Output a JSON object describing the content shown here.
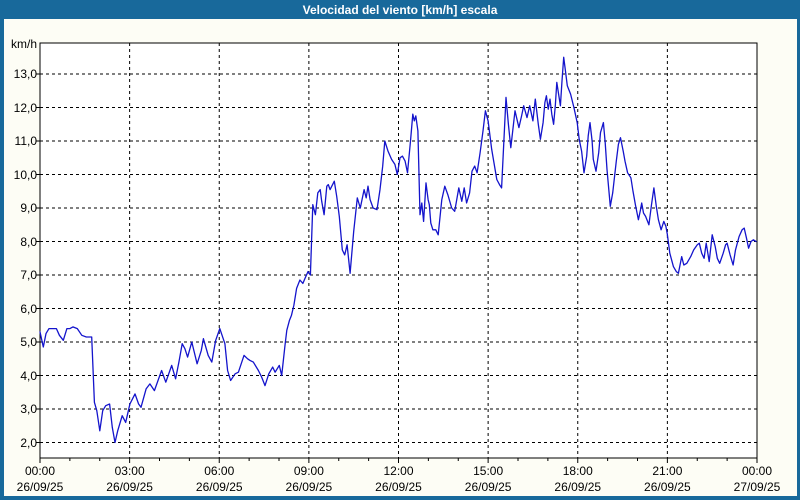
{
  "window": {
    "title": "Velocidad del viento [km/h] escala"
  },
  "colors": {
    "frame": "#18699b",
    "title_text": "#ffffff",
    "line": "#1414cc",
    "grid": "#000000",
    "outer_background": "#fdfdf5",
    "plot_background": "#ffffff"
  },
  "chart_data": {
    "type": "line",
    "title": "Velocidad del viento [km/h] escala",
    "ylabel": "km/h",
    "grid": "dashed",
    "legend": "none",
    "xlim_hours": [
      0,
      24
    ],
    "ylim": [
      1.55,
      13.93
    ],
    "y_ticks": [
      {
        "value": 13,
        "label": "13,0"
      },
      {
        "value": 12,
        "label": "12,0"
      },
      {
        "value": 11,
        "label": "11,0"
      },
      {
        "value": 10,
        "label": "10,0"
      },
      {
        "value": 9,
        "label": "9,0"
      },
      {
        "value": 8,
        "label": "8,0"
      },
      {
        "value": 7,
        "label": "7,0"
      },
      {
        "value": 6,
        "label": "6,0"
      },
      {
        "value": 5,
        "label": "5,0"
      },
      {
        "value": 4,
        "label": "4,0"
      },
      {
        "value": 3,
        "label": "3,0"
      },
      {
        "value": 2,
        "label": "2,0"
      }
    ],
    "x_ticks": [
      {
        "hour": 0,
        "time": "00:00",
        "date": "26/09/25"
      },
      {
        "hour": 3,
        "time": "03:00",
        "date": "26/09/25"
      },
      {
        "hour": 6,
        "time": "06:00",
        "date": "26/09/25"
      },
      {
        "hour": 9,
        "time": "09:00",
        "date": "26/09/25"
      },
      {
        "hour": 12,
        "time": "12:00",
        "date": "26/09/25"
      },
      {
        "hour": 15,
        "time": "15:00",
        "date": "26/09/25"
      },
      {
        "hour": 18,
        "time": "18:00",
        "date": "26/09/25"
      },
      {
        "hour": 21,
        "time": "21:00",
        "date": "26/09/25"
      },
      {
        "hour": 24,
        "time": "00:00",
        "date": "27/09/25"
      }
    ],
    "series": [
      {
        "name": "Velocidad del viento [km/h]",
        "points": [
          [
            0,
            5.3
          ],
          [
            0.11,
            4.85
          ],
          [
            0.2,
            5.25
          ],
          [
            0.3,
            5.4
          ],
          [
            0.45,
            5.4
          ],
          [
            0.55,
            5.4
          ],
          [
            0.65,
            5.2
          ],
          [
            0.78,
            5.05
          ],
          [
            0.9,
            5.4
          ],
          [
            1.0,
            5.4
          ],
          [
            1.1,
            5.45
          ],
          [
            1.25,
            5.4
          ],
          [
            1.4,
            5.2
          ],
          [
            1.55,
            5.15
          ],
          [
            1.73,
            5.15
          ],
          [
            1.82,
            3.2
          ],
          [
            1.9,
            2.95
          ],
          [
            2.0,
            2.35
          ],
          [
            2.1,
            2.95
          ],
          [
            2.2,
            3.1
          ],
          [
            2.33,
            3.15
          ],
          [
            2.42,
            2.45
          ],
          [
            2.51,
            2.0
          ],
          [
            2.6,
            2.35
          ],
          [
            2.75,
            2.8
          ],
          [
            2.87,
            2.6
          ],
          [
            3.01,
            3.15
          ],
          [
            3.18,
            3.45
          ],
          [
            3.3,
            3.15
          ],
          [
            3.38,
            3.05
          ],
          [
            3.55,
            3.6
          ],
          [
            3.68,
            3.75
          ],
          [
            3.83,
            3.55
          ],
          [
            4.07,
            4.15
          ],
          [
            4.21,
            3.8
          ],
          [
            4.41,
            4.3
          ],
          [
            4.54,
            3.9
          ],
          [
            4.65,
            4.4
          ],
          [
            4.76,
            4.95
          ],
          [
            4.85,
            4.8
          ],
          [
            4.94,
            4.55
          ],
          [
            5.08,
            5.0
          ],
          [
            5.26,
            4.35
          ],
          [
            5.4,
            4.75
          ],
          [
            5.47,
            5.1
          ],
          [
            5.63,
            4.6
          ],
          [
            5.75,
            4.4
          ],
          [
            5.88,
            5.05
          ],
          [
            6.02,
            5.4
          ],
          [
            6.19,
            4.95
          ],
          [
            6.28,
            4.15
          ],
          [
            6.38,
            3.85
          ],
          [
            6.53,
            4.05
          ],
          [
            6.64,
            4.1
          ],
          [
            6.83,
            4.6
          ],
          [
            6.95,
            4.5
          ],
          [
            7.03,
            4.45
          ],
          [
            7.14,
            4.4
          ],
          [
            7.31,
            4.15
          ],
          [
            7.42,
            3.95
          ],
          [
            7.53,
            3.7
          ],
          [
            7.66,
            4.05
          ],
          [
            7.79,
            4.25
          ],
          [
            7.87,
            4.1
          ],
          [
            8.01,
            4.3
          ],
          [
            8.09,
            4.0
          ],
          [
            8.2,
            4.9
          ],
          [
            8.26,
            5.35
          ],
          [
            8.35,
            5.65
          ],
          [
            8.42,
            5.8
          ],
          [
            8.5,
            6.1
          ],
          [
            8.59,
            6.6
          ],
          [
            8.7,
            6.85
          ],
          [
            8.8,
            6.75
          ],
          [
            8.87,
            6.9
          ],
          [
            8.97,
            7.1
          ],
          [
            9.05,
            7.0
          ],
          [
            9.13,
            9.1
          ],
          [
            9.22,
            8.8
          ],
          [
            9.3,
            9.45
          ],
          [
            9.38,
            9.55
          ],
          [
            9.43,
            9.2
          ],
          [
            9.51,
            8.8
          ],
          [
            9.6,
            9.65
          ],
          [
            9.65,
            9.7
          ],
          [
            9.71,
            9.55
          ],
          [
            9.85,
            9.8
          ],
          [
            9.93,
            9.35
          ],
          [
            10.02,
            8.75
          ],
          [
            10.12,
            7.75
          ],
          [
            10.2,
            7.6
          ],
          [
            10.28,
            7.9
          ],
          [
            10.38,
            7.05
          ],
          [
            10.5,
            8.3
          ],
          [
            10.62,
            9.3
          ],
          [
            10.72,
            9.0
          ],
          [
            10.85,
            9.55
          ],
          [
            10.92,
            9.3
          ],
          [
            10.98,
            9.65
          ],
          [
            11.05,
            9.25
          ],
          [
            11.15,
            9.0
          ],
          [
            11.28,
            8.95
          ],
          [
            11.38,
            9.55
          ],
          [
            11.47,
            10.25
          ],
          [
            11.54,
            11.0
          ],
          [
            11.65,
            10.7
          ],
          [
            11.77,
            10.45
          ],
          [
            11.88,
            10.3
          ],
          [
            11.96,
            10.0
          ],
          [
            12.05,
            10.5
          ],
          [
            12.13,
            10.55
          ],
          [
            12.22,
            10.4
          ],
          [
            12.3,
            10.05
          ],
          [
            12.4,
            11.0
          ],
          [
            12.48,
            11.8
          ],
          [
            12.53,
            11.6
          ],
          [
            12.58,
            11.75
          ],
          [
            12.65,
            11.3
          ],
          [
            12.72,
            8.8
          ],
          [
            12.78,
            9.15
          ],
          [
            12.84,
            8.6
          ],
          [
            12.92,
            9.75
          ],
          [
            12.99,
            9.25
          ],
          [
            13.03,
            9.1
          ],
          [
            13.08,
            8.55
          ],
          [
            13.15,
            8.35
          ],
          [
            13.25,
            8.35
          ],
          [
            13.33,
            8.2
          ],
          [
            13.45,
            9.25
          ],
          [
            13.55,
            9.65
          ],
          [
            13.65,
            9.4
          ],
          [
            13.78,
            9.0
          ],
          [
            13.88,
            8.9
          ],
          [
            14.02,
            9.6
          ],
          [
            14.12,
            9.2
          ],
          [
            14.2,
            9.6
          ],
          [
            14.28,
            9.15
          ],
          [
            14.38,
            9.45
          ],
          [
            14.46,
            10.1
          ],
          [
            14.55,
            10.25
          ],
          [
            14.63,
            10.05
          ],
          [
            14.73,
            10.65
          ],
          [
            14.83,
            11.3
          ],
          [
            14.91,
            11.9
          ],
          [
            15.0,
            11.6
          ],
          [
            15.12,
            10.75
          ],
          [
            15.29,
            9.85
          ],
          [
            15.38,
            9.7
          ],
          [
            15.45,
            9.6
          ],
          [
            15.6,
            12.3
          ],
          [
            15.68,
            11.5
          ],
          [
            15.76,
            10.8
          ],
          [
            15.83,
            11.35
          ],
          [
            15.9,
            11.9
          ],
          [
            16.03,
            11.4
          ],
          [
            16.12,
            11.75
          ],
          [
            16.19,
            12.05
          ],
          [
            16.3,
            11.7
          ],
          [
            16.39,
            12.05
          ],
          [
            16.5,
            11.6
          ],
          [
            16.58,
            12.25
          ],
          [
            16.68,
            11.5
          ],
          [
            16.75,
            11.05
          ],
          [
            16.84,
            11.55
          ],
          [
            16.9,
            12.15
          ],
          [
            16.95,
            12.35
          ],
          [
            17.01,
            11.95
          ],
          [
            17.07,
            12.25
          ],
          [
            17.13,
            11.8
          ],
          [
            17.19,
            11.5
          ],
          [
            17.25,
            12.05
          ],
          [
            17.3,
            12.75
          ],
          [
            17.36,
            12.4
          ],
          [
            17.42,
            12.05
          ],
          [
            17.47,
            12.75
          ],
          [
            17.53,
            13.5
          ],
          [
            17.58,
            13.15
          ],
          [
            17.65,
            12.65
          ],
          [
            17.76,
            12.4
          ],
          [
            17.87,
            12.0
          ],
          [
            17.98,
            11.55
          ],
          [
            18.05,
            11.05
          ],
          [
            18.13,
            10.7
          ],
          [
            18.21,
            10.05
          ],
          [
            18.3,
            10.55
          ],
          [
            18.35,
            11.15
          ],
          [
            18.41,
            11.55
          ],
          [
            18.48,
            11.0
          ],
          [
            18.52,
            10.45
          ],
          [
            18.61,
            10.1
          ],
          [
            18.7,
            10.65
          ],
          [
            18.76,
            11.25
          ],
          [
            18.86,
            11.55
          ],
          [
            18.92,
            10.95
          ],
          [
            18.98,
            10.15
          ],
          [
            19.05,
            9.45
          ],
          [
            19.09,
            9.05
          ],
          [
            19.17,
            9.45
          ],
          [
            19.29,
            10.4
          ],
          [
            19.36,
            10.9
          ],
          [
            19.43,
            11.1
          ],
          [
            19.52,
            10.7
          ],
          [
            19.58,
            10.4
          ],
          [
            19.67,
            10.05
          ],
          [
            19.78,
            9.9
          ],
          [
            19.85,
            9.5
          ],
          [
            19.93,
            9.1
          ],
          [
            20.03,
            8.65
          ],
          [
            20.1,
            8.95
          ],
          [
            20.14,
            9.15
          ],
          [
            20.2,
            8.85
          ],
          [
            20.27,
            8.75
          ],
          [
            20.38,
            8.5
          ],
          [
            20.47,
            9.1
          ],
          [
            20.55,
            9.6
          ],
          [
            20.63,
            9.05
          ],
          [
            20.7,
            8.65
          ],
          [
            20.79,
            8.35
          ],
          [
            20.88,
            8.6
          ],
          [
            20.95,
            8.45
          ],
          [
            21.0,
            8.2
          ],
          [
            21.08,
            7.65
          ],
          [
            21.2,
            7.25
          ],
          [
            21.3,
            7.1
          ],
          [
            21.37,
            7.05
          ],
          [
            21.48,
            7.55
          ],
          [
            21.55,
            7.3
          ],
          [
            21.65,
            7.35
          ],
          [
            21.78,
            7.55
          ],
          [
            21.88,
            7.75
          ],
          [
            22.0,
            7.9
          ],
          [
            22.07,
            7.95
          ],
          [
            22.15,
            7.65
          ],
          [
            22.23,
            7.5
          ],
          [
            22.3,
            7.95
          ],
          [
            22.4,
            7.4
          ],
          [
            22.5,
            8.2
          ],
          [
            22.6,
            7.85
          ],
          [
            22.67,
            7.5
          ],
          [
            22.75,
            7.35
          ],
          [
            22.87,
            7.65
          ],
          [
            22.95,
            7.9
          ],
          [
            23.0,
            7.95
          ],
          [
            23.1,
            7.6
          ],
          [
            23.2,
            7.3
          ],
          [
            23.28,
            7.75
          ],
          [
            23.4,
            8.15
          ],
          [
            23.5,
            8.35
          ],
          [
            23.57,
            8.4
          ],
          [
            23.65,
            8.1
          ],
          [
            23.72,
            7.8
          ],
          [
            23.8,
            8.0
          ],
          [
            23.88,
            8.05
          ],
          [
            23.97,
            8.0
          ]
        ]
      }
    ]
  }
}
